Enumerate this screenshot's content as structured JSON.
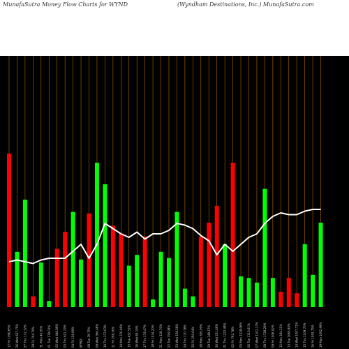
{
  "header": {
    "left": "MunafaSutra  Money  Flow  Charts for WYND",
    "right": "(Wyndham Destinations,  Inc.)  MunafaSutra.com"
  },
  "colors": {
    "background": "#000000",
    "up_bar": "#00ff00",
    "down_bar": "#ff0000",
    "line": "#ffffff",
    "grid": "#b36a00"
  },
  "chart_data": {
    "type": "bar",
    "title": "",
    "xlabel": "",
    "ylabel": "",
    "grid": "vertical",
    "legend": "none",
    "ylim": [
      0,
      100
    ],
    "series": [
      {
        "values": [
          100,
          36,
          70,
          7,
          29,
          4,
          38,
          49,
          62,
          31,
          61,
          94,
          80,
          53,
          48,
          27,
          34,
          46,
          5,
          36,
          32,
          62,
          12,
          7,
          46,
          55,
          66,
          41,
          94,
          20,
          19,
          16,
          77,
          19,
          10,
          19,
          9,
          41,
          21,
          55
        ],
        "direction": [
          "down",
          "up",
          "up",
          "down",
          "up",
          "up",
          "down",
          "down",
          "up",
          "up",
          "down",
          "up",
          "up",
          "down",
          "down",
          "up",
          "up",
          "down",
          "up",
          "up",
          "up",
          "up",
          "up",
          "up",
          "down",
          "down",
          "down",
          "up",
          "down",
          "up",
          "up",
          "up",
          "up",
          "up",
          "down",
          "down",
          "down",
          "up",
          "up",
          "up"
        ]
      },
      {
        "values": [
          32,
          32.5,
          32,
          31.5,
          32.5,
          33,
          33,
          33,
          35,
          37,
          33,
          37,
          43,
          41.5,
          40,
          39,
          40.5,
          38.5,
          40,
          40,
          41,
          43,
          42.5,
          41.5,
          39.5,
          38,
          34,
          37,
          35,
          37,
          39,
          40,
          43,
          45,
          46,
          45.5,
          45.5,
          46.5,
          47,
          47
        ]
      }
    ],
    "x": [
      "12 Fri 1090.65%",
      "26 Wed 637.75%",
      "27 Thu 172.32%",
      "28 Fri 744.70%",
      "31 Mon 40.93%",
      "01 Tue 178.01%",
      "02 Wed 448.89%",
      "03 Thu 621.20%",
      "04 Fri 156.89%",
      "WYND",
      "08 Tue 29.75%",
      "09 Wed 366.46%",
      "10 Thu 272.03%",
      "11 Fri 208.30%",
      "14 Mon 376.96%",
      "15 Tue 432.31%",
      "16 Wed 65.19%",
      "17 Thu 178.47%",
      "18 Fri 1034.20%",
      "21 Mon 128.70%",
      "22 Tue 154.98%",
      "23 Wed 158.58%",
      "24 Thu 170.78%",
      "25 Fri 250.64%",
      "28 Mon 309.09%",
      "29 Tue 348.17%",
      "30 Wed 231.69%",
      "01 Thu 1222.48%",
      "02 Fri 792.78%",
      "05 Mon 1328.06%",
      "06 Tue 1110.61%",
      "07 Wed 1102.17%",
      "08 Thu 1728.28%",
      "09 Fri 1006.92%",
      "12 Mon 184.31%",
      "13 Tue 1065.80%",
      "14 Wed 1097.71%",
      "15 Thu 1109.70%",
      "16 Fri 1093.75%",
      "19 Mon 1092.99%"
    ]
  }
}
